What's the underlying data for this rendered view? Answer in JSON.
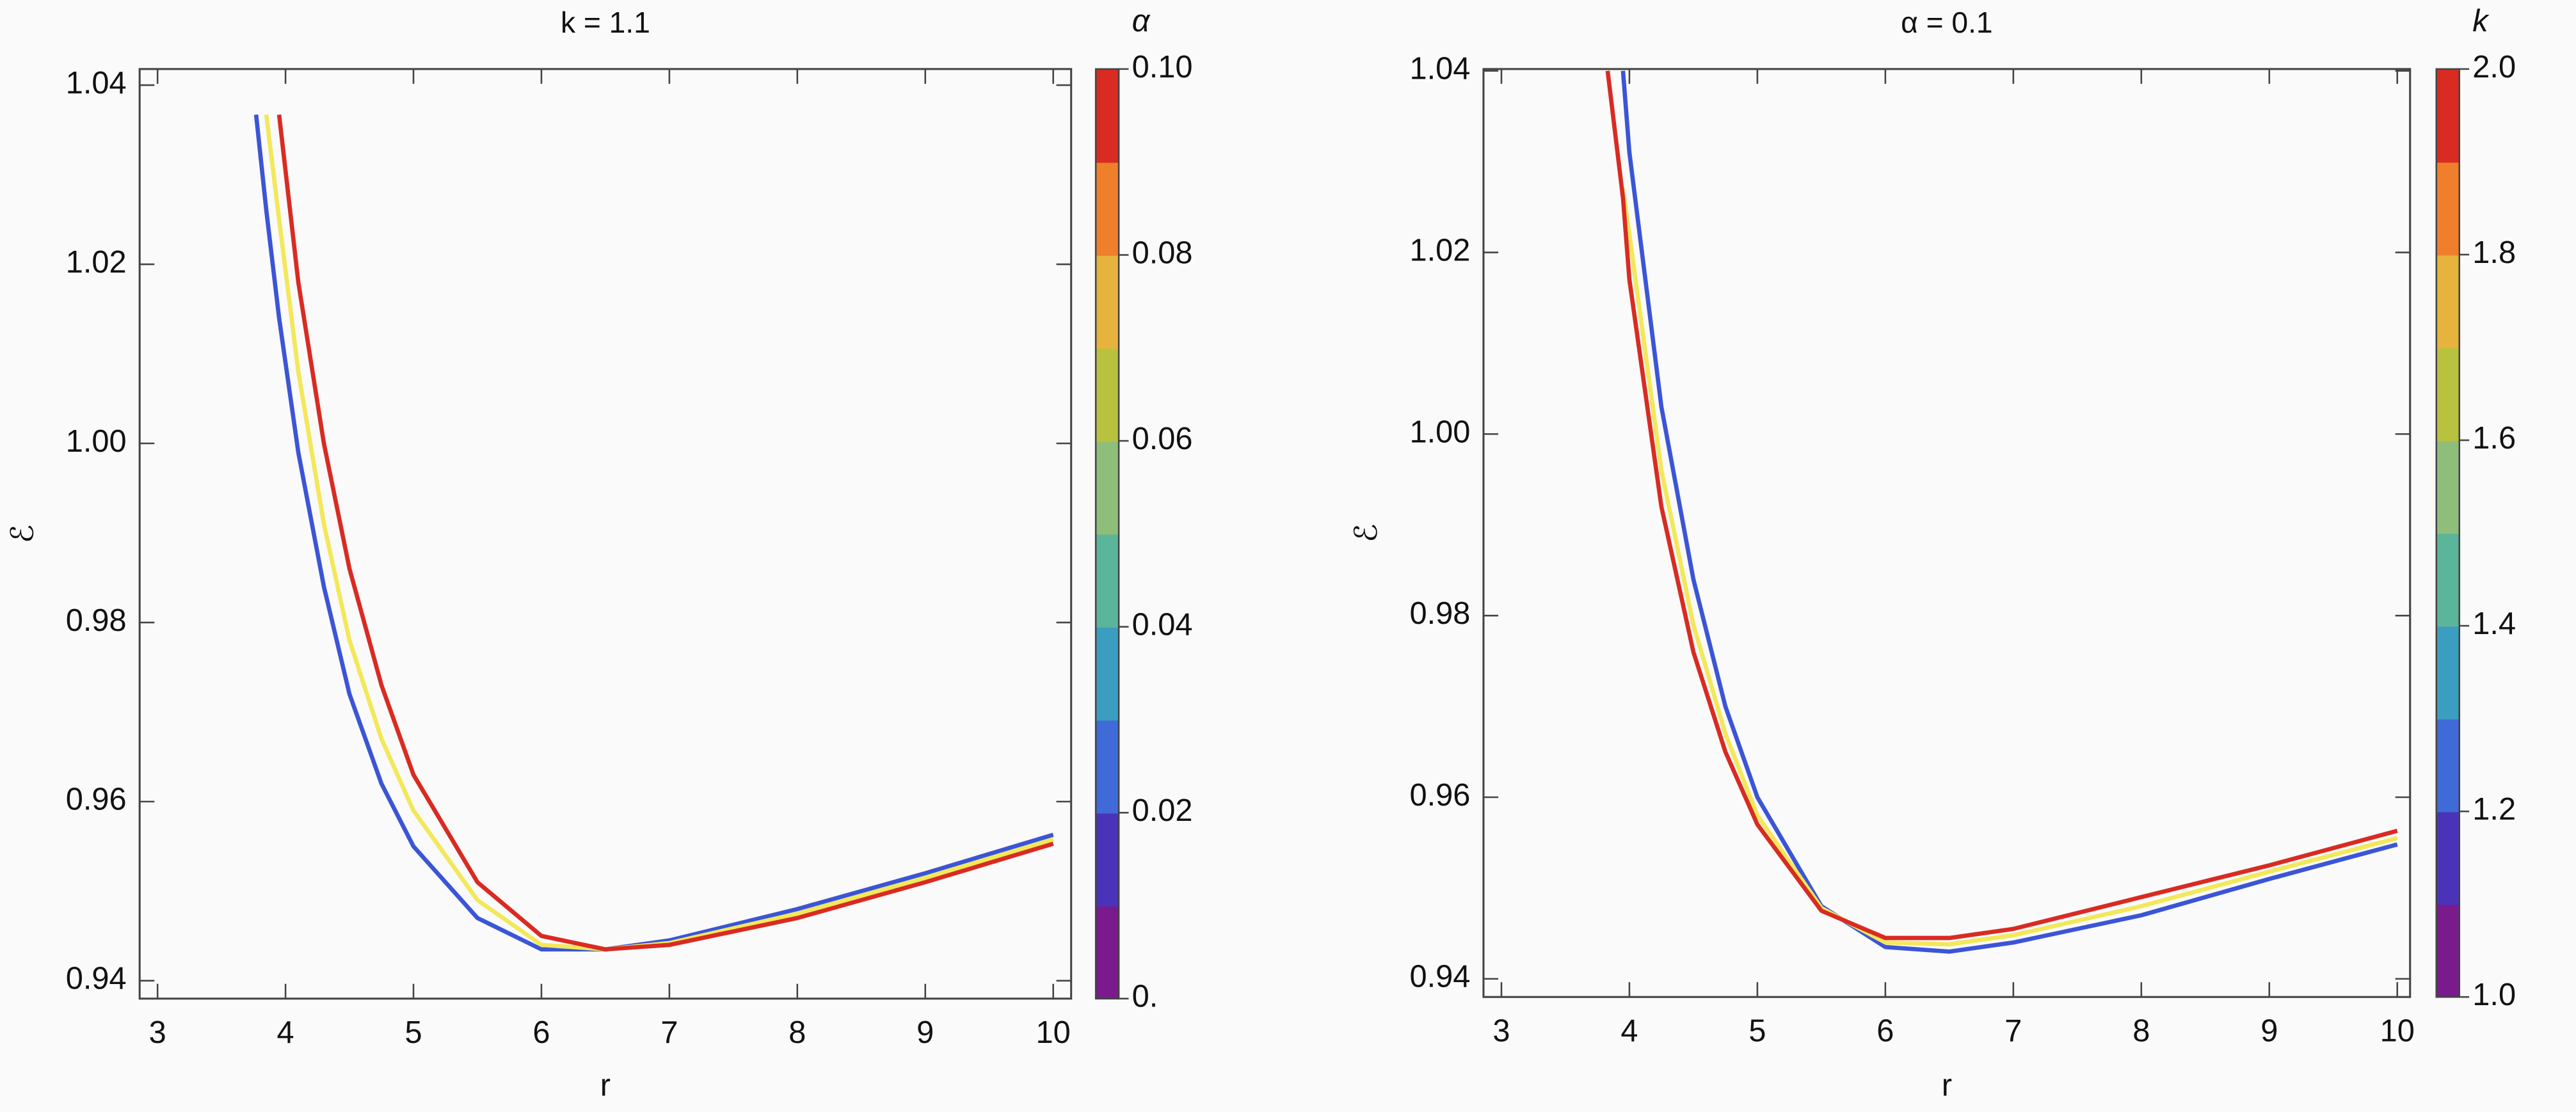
{
  "chart_data": [
    {
      "type": "line",
      "title": "k = 1.1",
      "xlabel": "r",
      "ylabel": "ℰ",
      "x": [
        3.77,
        3.85,
        3.95,
        4.1,
        4.3,
        4.5,
        4.75,
        5,
        5.5,
        6,
        6.5,
        7,
        8,
        9,
        10
      ],
      "series": [
        {
          "color": "#3b55d6",
          "values": [
            1.0367,
            1.026,
            1.014,
            0.999,
            0.984,
            0.972,
            0.962,
            0.955,
            0.947,
            0.9435,
            0.9435,
            0.9445,
            0.948,
            0.952,
            0.9563
          ]
        },
        {
          "color": "#f2e85a",
          "values": [
            null,
            1.0367,
            1.025,
            1.008,
            0.991,
            0.978,
            0.967,
            0.959,
            0.949,
            0.944,
            0.9435,
            0.9442,
            0.9475,
            0.9515,
            0.9558
          ]
        },
        {
          "color": "#d92b22",
          "values": [
            null,
            null,
            1.0367,
            1.018,
            1.0,
            0.986,
            0.973,
            0.963,
            0.951,
            0.945,
            0.9435,
            0.944,
            0.947,
            0.951,
            0.9553
          ]
        }
      ],
      "xlim": [
        2.86,
        10.14
      ],
      "ylim": [
        0.938,
        1.0418
      ],
      "xticks": [
        3,
        4,
        5,
        6,
        7,
        8,
        9,
        10
      ],
      "yticks": [
        0.94,
        0.96,
        0.98,
        {
          "value": 1.0,
          "label": "1.00"
        },
        1.02,
        1.04
      ],
      "colorbar": {
        "label": "α",
        "lim": [
          0,
          0.1
        ],
        "ticks": [
          {
            "value": 0,
            "label": "0."
          },
          0.02,
          0.04,
          0.06,
          0.08,
          {
            "value": 0.1,
            "label": "0.10"
          }
        ],
        "colors": [
          "#7a1a8c",
          "#4a33b8",
          "#3f6ad8",
          "#3b9ec0",
          "#5bb59a",
          "#8fbe7a",
          "#b8c23e",
          "#e6b33c",
          "#ef7f2a",
          "#d92b22"
        ]
      }
    },
    {
      "type": "line",
      "title": "α = 0.1",
      "xlabel": "r",
      "ylabel": "ℰ",
      "x": [
        3.83,
        3.95,
        4,
        4.25,
        4.5,
        4.75,
        5,
        5.5,
        6,
        6.5,
        7,
        8,
        9,
        10
      ],
      "series": [
        {
          "color": "#3b55d6",
          "values": [
            null,
            1.04,
            1.031,
            1.003,
            0.984,
            0.97,
            0.96,
            0.948,
            0.9435,
            0.943,
            0.944,
            0.947,
            0.951,
            0.9548
          ]
        },
        {
          "color": "#f2e85a",
          "values": [
            null,
            1.027,
            1.022,
            0.996,
            0.979,
            0.967,
            0.958,
            0.9478,
            0.944,
            0.9438,
            0.9448,
            0.948,
            0.9518,
            0.9555
          ]
        },
        {
          "color": "#d92b22",
          "values": [
            1.04,
            1.026,
            1.017,
            0.992,
            0.976,
            0.965,
            0.957,
            0.9475,
            0.9445,
            0.9445,
            0.9455,
            0.949,
            0.9525,
            0.9563
          ]
        }
      ],
      "xlim": [
        2.86,
        10.1
      ],
      "ylim": [
        0.938,
        1.0402
      ],
      "xticks": [
        3,
        4,
        5,
        6,
        7,
        8,
        9,
        10
      ],
      "yticks": [
        0.94,
        0.96,
        0.98,
        {
          "value": 1.0,
          "label": "1.00"
        },
        1.02,
        1.04
      ],
      "colorbar": {
        "label": "k",
        "lim": [
          1,
          2
        ],
        "ticks": [
          {
            "value": 1,
            "label": "1.0"
          },
          1.2,
          1.4,
          1.6,
          1.8,
          {
            "value": 2,
            "label": "2.0"
          }
        ],
        "colors": [
          "#7a1a8c",
          "#4a33b8",
          "#3f6ad8",
          "#3b9ec0",
          "#5bb59a",
          "#8fbe7a",
          "#b8c23e",
          "#e6b33c",
          "#ef7f2a",
          "#d92b22"
        ]
      }
    }
  ]
}
